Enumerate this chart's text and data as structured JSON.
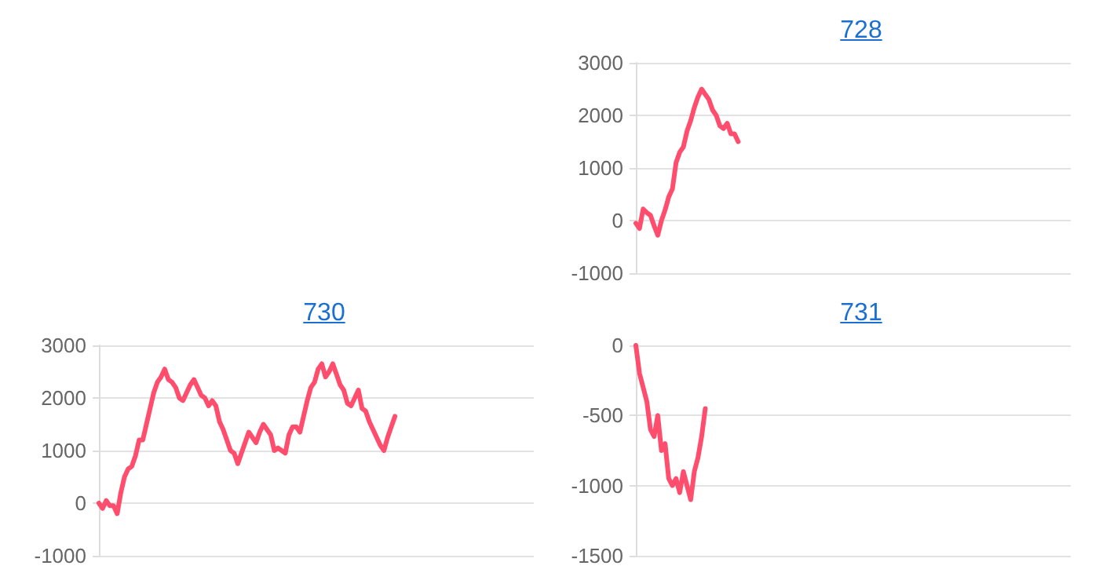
{
  "chart_data": [
    {
      "type": "line",
      "title": "728",
      "categories": [
        null,
        null,
        null,
        null,
        null,
        null,
        null,
        null,
        null,
        null,
        null,
        null,
        null,
        null,
        null,
        null,
        null,
        null,
        null,
        null,
        null,
        null,
        null,
        null,
        null,
        null,
        null,
        null,
        null,
        null,
        null,
        null,
        null,
        null,
        null,
        null,
        null,
        null,
        null,
        null,
        null,
        null,
        null,
        null,
        null,
        null,
        null,
        null,
        null,
        null,
        null,
        null,
        null,
        null,
        null,
        null,
        null,
        null,
        null,
        null,
        null,
        null,
        null,
        null,
        null,
        null,
        null,
        null,
        null,
        null,
        null,
        null,
        null,
        null,
        null,
        null,
        null,
        null,
        null,
        null,
        null,
        null,
        null,
        null,
        null,
        null,
        null,
        null,
        null,
        null,
        null,
        null,
        null,
        null,
        null,
        null,
        null,
        null,
        null,
        null,
        null,
        null,
        null,
        null,
        null,
        null,
        null,
        null,
        null,
        null,
        null,
        null,
        null,
        null,
        null,
        null,
        null,
        null,
        null,
        null
      ],
      "series": [
        {
          "color": "#ff4d6d",
          "values": [
            -50,
            -150,
            220,
            150,
            100,
            -100,
            -280,
            0,
            200,
            450,
            600,
            1100,
            1300,
            1400,
            1700,
            1900,
            2150,
            2350,
            2500,
            2400,
            2300,
            2100,
            2000,
            1800,
            1750,
            1850,
            1650,
            1650,
            1500,
            null,
            null,
            null,
            null,
            null,
            null,
            null,
            null,
            null,
            null,
            null,
            null,
            null,
            null,
            null,
            null,
            null,
            null,
            null,
            null,
            null,
            null,
            null,
            null,
            null,
            null,
            null,
            null,
            null,
            null,
            null,
            null,
            null,
            null,
            null,
            null,
            null,
            null,
            null,
            null,
            null,
            null,
            null,
            null,
            null,
            null,
            null,
            null,
            null,
            null,
            null,
            null,
            null,
            null,
            null,
            null,
            null,
            null,
            null,
            null,
            null,
            null,
            null,
            null,
            null,
            null,
            null,
            null,
            null,
            null,
            null,
            null,
            null,
            null,
            null,
            null,
            null,
            null,
            null,
            null,
            null,
            null,
            null,
            null,
            null,
            null,
            null,
            null,
            null,
            null,
            null
          ]
        }
      ],
      "ylim": [
        -1000,
        3000
      ],
      "yticks": [
        -1000,
        0,
        1000,
        2000,
        3000
      ],
      "grid": "y",
      "tick_labels": "y",
      "line_style": "solid"
    },
    {
      "type": "line",
      "title": "730",
      "categories": [
        null,
        null,
        null,
        null,
        null,
        null,
        null,
        null,
        null,
        null,
        null,
        null,
        null,
        null,
        null,
        null,
        null,
        null,
        null,
        null,
        null,
        null,
        null,
        null,
        null,
        null,
        null,
        null,
        null,
        null,
        null,
        null,
        null,
        null,
        null,
        null,
        null,
        null,
        null,
        null,
        null,
        null,
        null,
        null,
        null,
        null,
        null,
        null,
        null,
        null,
        null,
        null,
        null,
        null,
        null,
        null,
        null,
        null,
        null,
        null,
        null,
        null,
        null,
        null,
        null,
        null,
        null,
        null,
        null,
        null,
        null,
        null,
        null,
        null,
        null,
        null,
        null,
        null,
        null,
        null,
        null,
        null,
        null,
        null,
        null,
        null,
        null,
        null,
        null,
        null,
        null,
        null,
        null,
        null,
        null,
        null,
        null,
        null,
        null,
        null,
        null,
        null,
        null,
        null,
        null,
        null,
        null,
        null,
        null,
        null,
        null,
        null,
        null,
        null,
        null,
        null,
        null,
        null,
        null,
        null
      ],
      "series": [
        {
          "color": "#ff4d6d",
          "values": [
            0,
            -100,
            50,
            -50,
            -50,
            -200,
            200,
            500,
            650,
            700,
            900,
            1200,
            1200,
            1500,
            1800,
            2100,
            2300,
            2400,
            2550,
            2350,
            2300,
            2200,
            2000,
            1950,
            2100,
            2250,
            2350,
            2200,
            2050,
            2000,
            1850,
            1950,
            1850,
            1550,
            1400,
            1200,
            1000,
            950,
            750,
            950,
            1150,
            1350,
            1250,
            1150,
            1350,
            1500,
            1400,
            1300,
            1000,
            1050,
            1000,
            950,
            1300,
            1450,
            1450,
            1350,
            1650,
            1950,
            2200,
            2300,
            2550,
            2650,
            2400,
            2500,
            2650,
            2450,
            2250,
            2150,
            1900,
            1850,
            2000,
            2150,
            1800,
            1750,
            1550,
            1400,
            1250,
            1100,
            1000,
            1250,
            1450,
            1650,
            null,
            null,
            null,
            null,
            null,
            null,
            null,
            null,
            null,
            null,
            null,
            null,
            null,
            null,
            null,
            null,
            null,
            null,
            null,
            null,
            null,
            null,
            null,
            null,
            null,
            null,
            null,
            null,
            null,
            null,
            null,
            null,
            null,
            null,
            null,
            null,
            null,
            null
          ]
        }
      ],
      "ylim": [
        -1000,
        3000
      ],
      "yticks": [
        -1000,
        0,
        1000,
        2000,
        3000
      ],
      "grid": "y",
      "tick_labels": "y",
      "line_style": "solid"
    },
    {
      "type": "line",
      "title": "731",
      "categories": [
        null,
        null,
        null,
        null,
        null,
        null,
        null,
        null,
        null,
        null,
        null,
        null,
        null,
        null,
        null,
        null,
        null,
        null,
        null,
        null,
        null,
        null,
        null,
        null,
        null,
        null,
        null,
        null,
        null,
        null,
        null,
        null,
        null,
        null,
        null,
        null,
        null,
        null,
        null,
        null,
        null,
        null,
        null,
        null,
        null,
        null,
        null,
        null,
        null,
        null,
        null,
        null,
        null,
        null,
        null,
        null,
        null,
        null,
        null,
        null,
        null,
        null,
        null,
        null,
        null,
        null,
        null,
        null,
        null,
        null,
        null,
        null,
        null,
        null,
        null,
        null,
        null,
        null,
        null,
        null,
        null,
        null,
        null,
        null,
        null,
        null,
        null,
        null,
        null,
        null,
        null,
        null,
        null,
        null,
        null,
        null,
        null,
        null,
        null,
        null,
        null,
        null,
        null,
        null,
        null,
        null,
        null,
        null,
        null,
        null,
        null,
        null,
        null,
        null,
        null,
        null,
        null,
        null,
        null,
        null
      ],
      "series": [
        {
          "color": "#ff4d6d",
          "values": [
            0,
            -200,
            -300,
            -400,
            -600,
            -650,
            -500,
            -750,
            -700,
            -950,
            -1000,
            -950,
            -1050,
            -900,
            -1000,
            -1100,
            -900,
            -800,
            -650,
            -450,
            null,
            null,
            null,
            null,
            null,
            null,
            null,
            null,
            null,
            null,
            null,
            null,
            null,
            null,
            null,
            null,
            null,
            null,
            null,
            null,
            null,
            null,
            null,
            null,
            null,
            null,
            null,
            null,
            null,
            null,
            null,
            null,
            null,
            null,
            null,
            null,
            null,
            null,
            null,
            null,
            null,
            null,
            null,
            null,
            null,
            null,
            null,
            null,
            null,
            null,
            null,
            null,
            null,
            null,
            null,
            null,
            null,
            null,
            null,
            null,
            null,
            null,
            null,
            null,
            null,
            null,
            null,
            null,
            null,
            null,
            null,
            null,
            null,
            null,
            null,
            null,
            null,
            null,
            null,
            null,
            null,
            null,
            null,
            null,
            null,
            null,
            null,
            null,
            null,
            null,
            null,
            null,
            null,
            null,
            null,
            null,
            null,
            null,
            null,
            null
          ]
        }
      ],
      "ylim": [
        -1500,
        0
      ],
      "yticks": [
        -1500,
        -1000,
        -500,
        0
      ],
      "grid": "y",
      "tick_labels": "y",
      "line_style": "solid"
    }
  ]
}
